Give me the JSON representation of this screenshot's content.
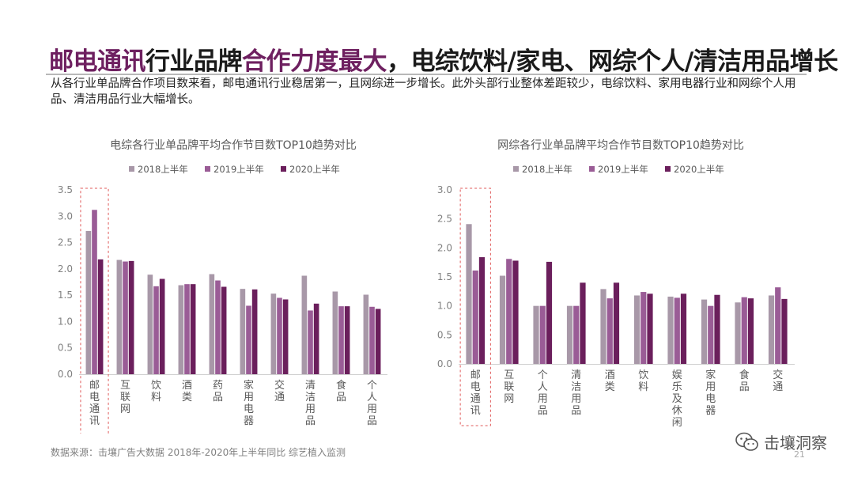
{
  "title": {
    "part1": "邮电通讯",
    "part2": "行业品牌",
    "part3": "合作力度最大",
    "part4": "，电综饮料/家电、网综个人/清洁用品增长"
  },
  "description": "从各行业单品牌合作项目数来看，邮电通讯行业稳居第一，且网综进一步增长。此外头部行业整体差距较少，电综饮料、家用电器行业和网综个人用品、清洁用品行业大幅增长。",
  "source": "数据来源：击壤广告大数据 2018年-2020年上半年同比 综艺植入监测",
  "brand": {
    "name": "击壤洞察",
    "icon": "wechat-icon"
  },
  "page_number": "21",
  "colors": {
    "s2018": "#a898a8",
    "s2019": "#9a5c96",
    "s2020": "#6b1f5c",
    "highlight_box": "#e05a5a",
    "grid_text": "#808080"
  },
  "chart_data": [
    {
      "type": "bar",
      "title": "电综各行业单品牌平均合作节目数TOP10趋势对比",
      "categories": [
        "邮电通讯",
        "互联网",
        "饮料",
        "酒类",
        "药品",
        "家用电器",
        "交通",
        "清洁用品",
        "食品",
        "个人用品"
      ],
      "series": [
        {
          "name": "2018上半年",
          "values": [
            2.72,
            2.17,
            1.89,
            1.69,
            1.9,
            1.62,
            1.53,
            1.87,
            1.57,
            1.51
          ]
        },
        {
          "name": "2019上半年",
          "values": [
            3.12,
            2.14,
            1.67,
            1.71,
            1.78,
            1.3,
            1.45,
            1.21,
            1.29,
            1.28
          ]
        },
        {
          "name": "2020上半年",
          "values": [
            2.18,
            2.15,
            1.81,
            1.71,
            1.66,
            1.61,
            1.42,
            1.34,
            1.29,
            1.24
          ]
        }
      ],
      "yticks": [
        "3.5",
        "3.0",
        "2.5",
        "2.0",
        "1.5",
        "1.0",
        "0.5",
        "0.0"
      ],
      "ylim": [
        0,
        3.5
      ],
      "highlight_category": "邮电通讯",
      "legend_position": "top",
      "grid": false
    },
    {
      "type": "bar",
      "title": "网综各行业单品牌平均合作节目数TOP10趋势对比",
      "categories": [
        "邮电通讯",
        "互联网",
        "个人用品",
        "清洁用品",
        "酒类",
        "饮料",
        "娱乐及休闲",
        "家用电器",
        "食品",
        "交通"
      ],
      "series": [
        {
          "name": "2018上半年",
          "values": [
            2.41,
            1.52,
            1.0,
            1.0,
            1.29,
            1.18,
            1.16,
            1.11,
            1.06,
            1.18
          ]
        },
        {
          "name": "2019上半年",
          "values": [
            1.61,
            1.81,
            1.0,
            1.0,
            1.13,
            1.24,
            1.14,
            1.0,
            1.15,
            1.32
          ]
        },
        {
          "name": "2020上半年",
          "values": [
            1.84,
            1.78,
            1.76,
            1.4,
            1.4,
            1.21,
            1.21,
            1.19,
            1.13,
            1.12
          ]
        }
      ],
      "yticks": [
        "3.0",
        "2.5",
        "2.0",
        "1.5",
        "1.0",
        "0.5",
        "0.0"
      ],
      "ylim": [
        0,
        3.0
      ],
      "highlight_category": "邮电通讯",
      "legend_position": "top",
      "grid": false
    }
  ]
}
